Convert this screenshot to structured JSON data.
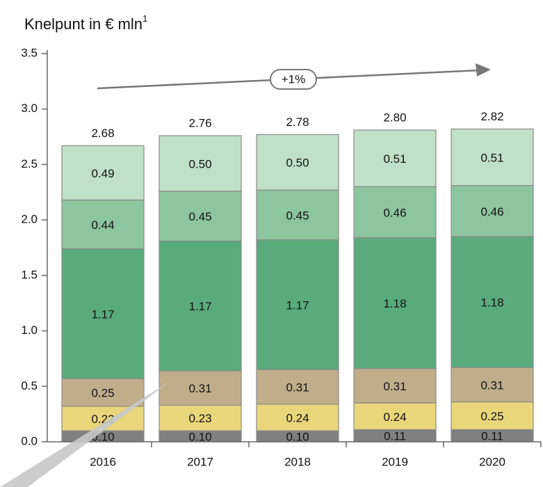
{
  "chart_data": {
    "type": "stacked_bar",
    "title": "Knelpunt in € mln",
    "title_footnote": "1",
    "annotation": "+1%",
    "categories": [
      "2016",
      "2017",
      "2018",
      "2019",
      "2020"
    ],
    "series": [
      {
        "color": "#808080",
        "values": [
          0.1,
          0.1,
          0.1,
          0.11,
          0.11
        ],
        "value_labels": [
          "0.10",
          "0.10",
          "0.10",
          "0.11",
          "0.11"
        ]
      },
      {
        "color": "#e9d67b",
        "values": [
          0.22,
          0.23,
          0.24,
          0.24,
          0.25
        ],
        "value_labels": [
          "0.22",
          "0.23",
          "0.24",
          "0.24",
          "0.25"
        ]
      },
      {
        "color": "#c0ae8b",
        "values": [
          0.25,
          0.31,
          0.31,
          0.31,
          0.31
        ],
        "value_labels": [
          "0.25",
          "0.31",
          "0.31",
          "0.31",
          "0.31"
        ]
      },
      {
        "color": "#5aab7c",
        "values": [
          1.17,
          1.17,
          1.17,
          1.18,
          1.18
        ],
        "value_labels": [
          "1.17",
          "1.17",
          "1.17",
          "1.18",
          "1.18"
        ]
      },
      {
        "color": "#8dc59e",
        "values": [
          0.44,
          0.45,
          0.45,
          0.46,
          0.46
        ],
        "value_labels": [
          "0.44",
          "0.45",
          "0.45",
          "0.46",
          "0.46"
        ]
      },
      {
        "color": "#c0e0c7",
        "values": [
          0.49,
          0.5,
          0.5,
          0.51,
          0.51
        ],
        "value_labels": [
          "0.49",
          "0.50",
          "0.50",
          "0.51",
          "0.51"
        ]
      }
    ],
    "totals": [
      2.68,
      2.76,
      2.78,
      2.8,
      2.82
    ],
    "total_labels": [
      "2.68",
      "2.76",
      "2.78",
      "2.80",
      "2.82"
    ],
    "ylim": [
      0,
      3.5
    ],
    "yticks": [
      {
        "value": 0,
        "label": "0.0"
      },
      {
        "value": 0.5,
        "label": "0.5"
      },
      {
        "value": 1,
        "label": "1.0"
      },
      {
        "value": 1.5,
        "label": "1.5"
      },
      {
        "value": 2,
        "label": "2.0"
      },
      {
        "value": 2.5,
        "label": "2.5"
      },
      {
        "value": 3,
        "label": "3.0"
      },
      {
        "value": 3.5,
        "label": "3.5"
      }
    ]
  }
}
